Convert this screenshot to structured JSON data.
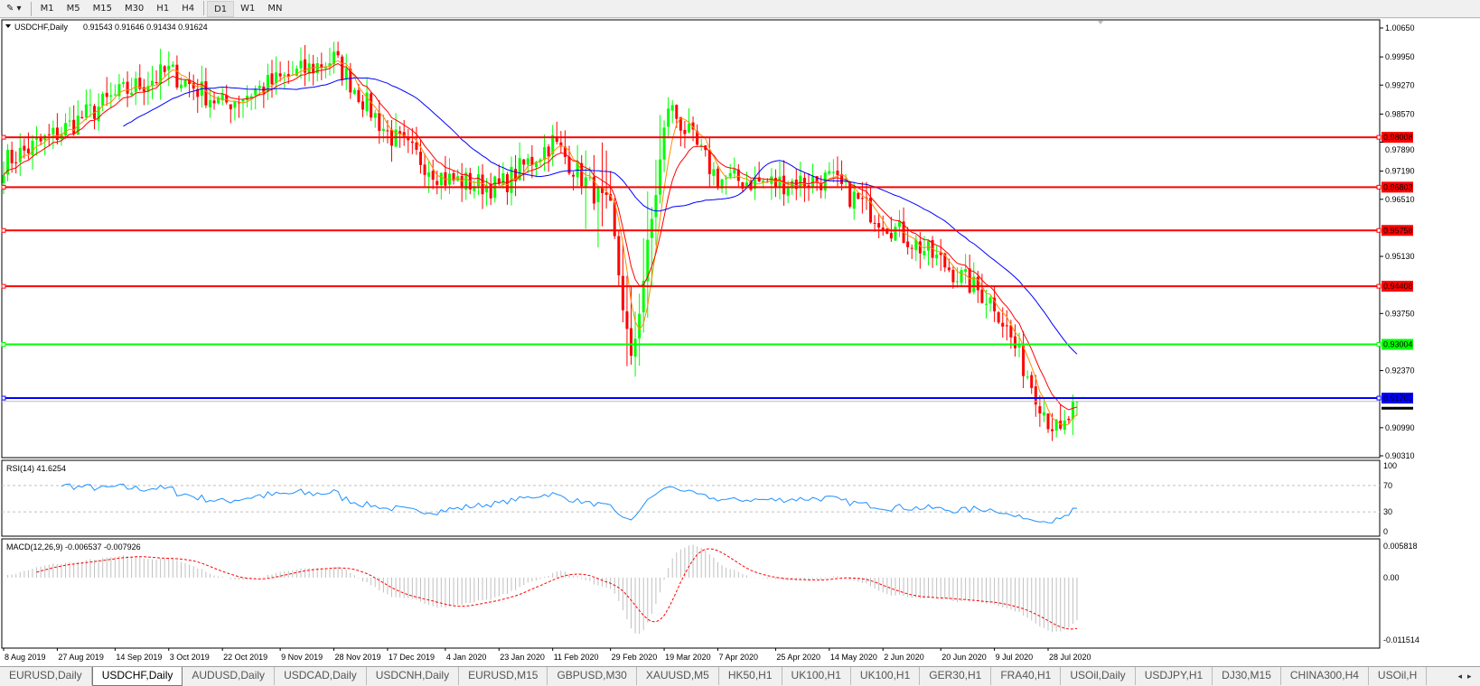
{
  "toolbar": {
    "drawing_tool_icon": "crosshair-pencil-icon",
    "timeframes": [
      "M1",
      "M5",
      "M15",
      "M30",
      "H1",
      "H4",
      "D1",
      "W1",
      "MN"
    ],
    "active_timeframe": "D1"
  },
  "chart": {
    "header": "USDCHF,Daily",
    "ohlc": "0.91543 0.91646 0.91434 0.91624",
    "price_axis_labels": [
      "1.00650",
      "0.99950",
      "0.99270",
      "0.98570",
      "0.97890",
      "0.97190",
      "0.96510",
      "0.95130",
      "0.93750",
      "0.92370",
      "0.90990",
      "0.90310"
    ],
    "price_range": [
      0.9031,
      1.0065
    ],
    "current_price": "0.91624",
    "hlines": [
      {
        "price": "0.98008",
        "color": "#ff0000"
      },
      {
        "price": "0.96803",
        "color": "#ff0000"
      },
      {
        "price": "0.95758",
        "color": "#ff0000"
      },
      {
        "price": "0.94408",
        "color": "#ff0000"
      },
      {
        "price": "0.93004",
        "color": "#00ff00"
      },
      {
        "price": "0.91705",
        "color": "#0000ff"
      }
    ],
    "date_labels": [
      "8 Aug 2019",
      "27 Aug 2019",
      "14 Sep 2019",
      "3 Oct 2019",
      "22 Oct 2019",
      "9 Nov 2019",
      "28 Nov 2019",
      "17 Dec 2019",
      "4 Jan 2020",
      "23 Jan 2020",
      "11 Feb 2020",
      "29 Feb 2020",
      "19 Mar 2020",
      "7 Apr 2020",
      "25 Apr 2020",
      "14 May 2020",
      "2 Jun 2020",
      "20 Jun 2020",
      "9 Jul 2020",
      "28 Jul 2020"
    ],
    "approx_closes": [
      [
        "8 Aug 2019",
        0.974
      ],
      [
        "27 Aug 2019",
        0.981
      ],
      [
        "14 Sep 2019",
        0.99
      ],
      [
        "3 Oct 2019",
        0.996
      ],
      [
        "22 Oct 2019",
        0.988
      ],
      [
        "9 Nov 2019",
        0.994
      ],
      [
        "28 Nov 2019",
        0.999
      ],
      [
        "17 Dec 2019",
        0.981
      ],
      [
        "4 Jan 2020",
        0.97
      ],
      [
        "23 Jan 2020",
        0.968
      ],
      [
        "11 Feb 2020",
        0.979
      ],
      [
        "29 Feb 2020",
        0.962
      ],
      [
        "9 Mar 2020",
        0.925
      ],
      [
        "20 Mar 2020",
        0.988
      ],
      [
        "7 Apr 2020",
        0.97
      ],
      [
        "25 Apr 2020",
        0.969
      ],
      [
        "14 May 2020",
        0.97
      ],
      [
        "2 Jun 2020",
        0.96
      ],
      [
        "20 Jun 2020",
        0.95
      ],
      [
        "9 Jul 2020",
        0.94
      ],
      [
        "28 Jul 2020",
        0.912
      ],
      [
        "31 Jul 2020",
        0.908
      ],
      [
        "6 Aug 2020",
        0.9162
      ]
    ],
    "colors": {
      "bull": "#00ff00",
      "bear": "#ff0000",
      "ma_fast": "#ff8c00",
      "ma_mid": "#ff0000",
      "ma_slow": "#0000ff"
    }
  },
  "rsi": {
    "header": "RSI(14) 41.6254",
    "axis_labels": [
      "100",
      "70",
      "30",
      "0"
    ],
    "color": "#1e90ff"
  },
  "macd": {
    "header": "MACD(12,26,9) -0.006537 -0.007926",
    "axis_labels": [
      "0.005818",
      "0.00",
      "-0.011514"
    ],
    "range": [
      -0.011514,
      0.005818
    ],
    "histogram_color": "#c0c0c0",
    "signal_color": "#ff0000"
  },
  "tabs": [
    "EURUSD,Daily",
    "USDCHF,Daily",
    "AUDUSD,Daily",
    "USDCAD,Daily",
    "USDCNH,Daily",
    "EURUSD,M15",
    "GBPUSD,M30",
    "XAUUSD,M5",
    "HK50,H1",
    "UK100,H1",
    "UK100,H1",
    "GER30,H1",
    "FRA40,H1",
    "USOil,Daily",
    "USDJPY,H1",
    "DJ30,M15",
    "CHINA300,H4",
    "USOil,H"
  ],
  "active_tab": "USDCHF,Daily",
  "tab_scroll": {
    "left": "◂",
    "right": "▸"
  }
}
